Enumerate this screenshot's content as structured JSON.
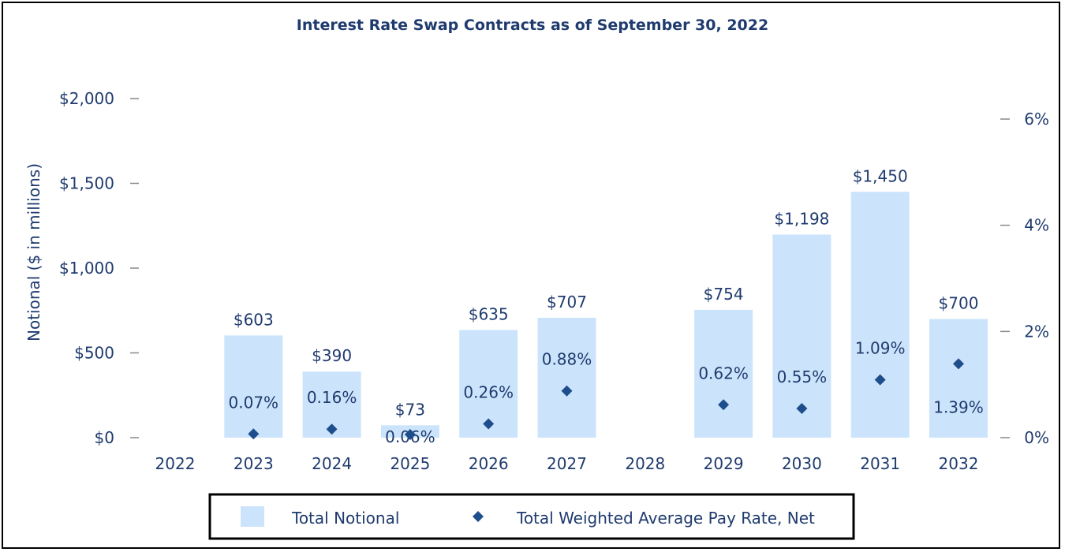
{
  "chart_data": {
    "type": "bar",
    "title": "Interest Rate Swap Contracts as of September 30, 2022",
    "ylabel": "Notional ($ in millions)",
    "y2label": "",
    "categories": [
      "2022",
      "2023",
      "2024",
      "2025",
      "2026",
      "2027",
      "2028",
      "2029",
      "2030",
      "2031",
      "2032"
    ],
    "series": [
      {
        "name": "Total Notional",
        "kind": "bar",
        "axis": "left",
        "values": [
          null,
          603,
          390,
          73,
          635,
          707,
          null,
          754,
          1198,
          1450,
          700
        ],
        "labels": [
          "",
          "$603",
          "$390",
          "$73",
          "$635",
          "$707",
          "",
          "$754",
          "$1,198",
          "$1,450",
          "$700"
        ]
      },
      {
        "name": "Total Weighted Average Pay Rate, Net",
        "kind": "scatter",
        "axis": "right",
        "values": [
          null,
          0.07,
          0.16,
          0.06,
          0.26,
          0.88,
          null,
          0.62,
          0.55,
          1.09,
          1.39
        ],
        "labels": [
          "",
          "0.07%",
          "0.16%",
          "0.06%",
          "0.26%",
          "0.88%",
          "",
          "0.62%",
          "0.55%",
          "1.09%",
          "1.39%"
        ]
      }
    ],
    "ylim": [
      0,
      2000
    ],
    "y2lim": [
      0,
      6
    ],
    "yticks": [
      "$0",
      "$500",
      "$1,000",
      "$1,500",
      "$2,000"
    ],
    "y2ticks": [
      "0%",
      "2%",
      "4%",
      "6%"
    ],
    "grid": false,
    "legend": "bottom",
    "colors": {
      "bar": "#cce4fb",
      "marker": "#1f4e8c",
      "text": "#1f3b6e"
    }
  }
}
